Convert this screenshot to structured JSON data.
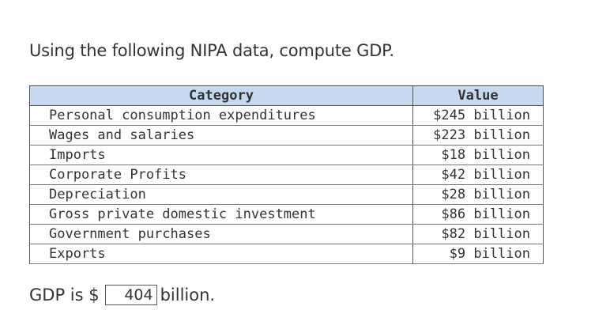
{
  "question": {
    "text": "Using the following NIPA data, compute GDP."
  },
  "table": {
    "headers": {
      "category": "Category",
      "value": "Value"
    },
    "rows": [
      {
        "category": "Personal consumption expenditures",
        "value": "$245 billion"
      },
      {
        "category": "Wages and salaries",
        "value": "$223 billion"
      },
      {
        "category": "Imports",
        "value": "$18 billion"
      },
      {
        "category": "Corporate Profits",
        "value": "$42 billion"
      },
      {
        "category": "Depreciation",
        "value": "$28 billion"
      },
      {
        "category": "Gross private domestic investment",
        "value": "$86 billion"
      },
      {
        "category": "Government purchases",
        "value": "$82 billion"
      },
      {
        "category": "Exports",
        "value": "$9 billion"
      }
    ],
    "header_color": "#c6d9f1"
  },
  "answer": {
    "prefix": "GDP is $",
    "value": "404",
    "suffix": "billion."
  }
}
